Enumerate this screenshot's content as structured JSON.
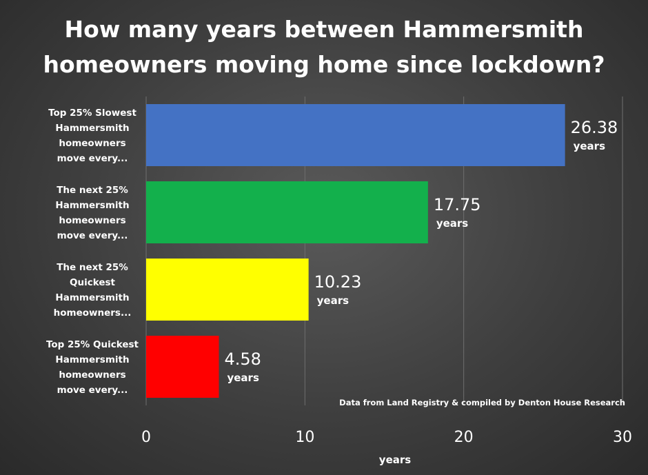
{
  "chart_data": {
    "type": "bar",
    "orientation": "horizontal",
    "title_lines": [
      "How many years between Hammersmith",
      "homeowners moving home since lockdown?"
    ],
    "categories": [
      [
        "Top 25% Slowest",
        "Hammersmith",
        "homeowners",
        "move every..."
      ],
      [
        "The next 25%",
        "Hammersmith",
        "homeowners",
        "move every..."
      ],
      [
        "The next 25%",
        "Quickest",
        "Hammersmith",
        "homeowners..."
      ],
      [
        "Top 25% Quickest",
        "Hammersmith",
        "homeowners",
        "move every..."
      ]
    ],
    "values": [
      26.38,
      17.75,
      10.23,
      4.58
    ],
    "value_labels": [
      "26.38",
      "17.75",
      "10.23",
      "4.58"
    ],
    "value_unit": "years",
    "bar_colors": [
      "#4472c4",
      "#13b04c",
      "#ffff00",
      "#ff0000"
    ],
    "xlim": [
      0,
      30
    ],
    "xticks": [
      "0",
      "10",
      "20",
      "30"
    ],
    "xlabel": "years",
    "grid": "vertical",
    "source_note": "Data from Land Registry & compiled by Denton House Research"
  }
}
